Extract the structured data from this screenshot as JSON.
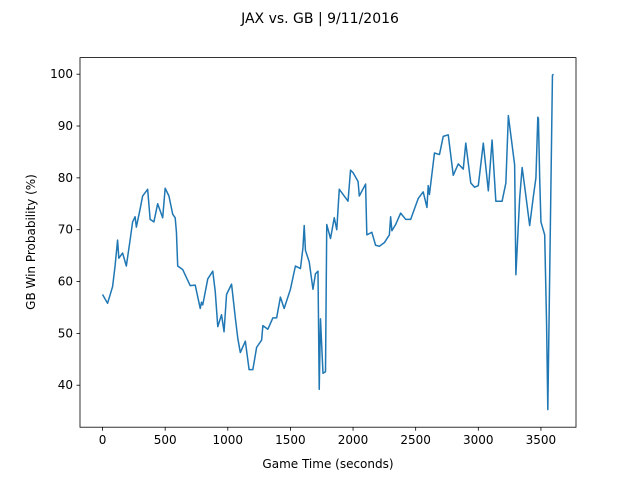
{
  "chart_data": {
    "type": "line",
    "title": "JAX vs. GB | 9/11/2016",
    "x_label": "Game Time (seconds)",
    "y_label": "GB Win Probability (%)",
    "xlim": [
      -180,
      3780
    ],
    "ylim": [
      31.9,
      103.2
    ],
    "xticks": [
      0,
      500,
      1000,
      1500,
      2000,
      2500,
      3000,
      3500
    ],
    "yticks": [
      40,
      50,
      60,
      70,
      80,
      90,
      100
    ],
    "series": [
      {
        "color": "#1f77b4",
        "x": [
          0,
          40,
          80,
          100,
          120,
          130,
          160,
          190,
          220,
          240,
          260,
          270,
          300,
          320,
          360,
          380,
          410,
          440,
          480,
          500,
          530,
          560,
          580,
          590,
          600,
          640,
          700,
          740,
          780,
          790,
          800,
          840,
          880,
          900,
          920,
          950,
          970,
          990,
          1030,
          1060,
          1080,
          1100,
          1140,
          1170,
          1200,
          1230,
          1270,
          1280,
          1320,
          1360,
          1390,
          1420,
          1450,
          1500,
          1540,
          1580,
          1600,
          1610,
          1620,
          1650,
          1680,
          1700,
          1720,
          1730,
          1740,
          1760,
          1780,
          1790,
          1820,
          1850,
          1870,
          1890,
          1960,
          1980,
          2000,
          2040,
          2050,
          2100,
          2110,
          2150,
          2180,
          2210,
          2250,
          2290,
          2300,
          2310,
          2340,
          2380,
          2420,
          2460,
          2490,
          2520,
          2560,
          2590,
          2600,
          2610,
          2650,
          2690,
          2720,
          2760,
          2800,
          2840,
          2880,
          2900,
          2940,
          2970,
          3000,
          3040,
          3080,
          3110,
          3140,
          3190,
          3220,
          3240,
          3290,
          3300,
          3330,
          3350,
          3380,
          3410,
          3440,
          3460,
          3475,
          3480,
          3490,
          3500,
          3530,
          3545,
          3555,
          3592,
          3600
        ],
        "values": [
          57.5,
          55.8,
          59,
          63,
          68,
          64.5,
          65.5,
          63,
          68,
          71.5,
          72.5,
          70.5,
          74,
          76.5,
          77.8,
          72,
          71.5,
          75,
          72.3,
          78,
          76.5,
          73,
          72.3,
          69.5,
          63,
          62.3,
          59.2,
          59.3,
          54.8,
          56,
          55.5,
          60.5,
          62,
          58,
          51.3,
          53.6,
          50.3,
          57.5,
          59.5,
          53,
          49,
          46.3,
          48.5,
          43,
          43,
          47.3,
          48.7,
          51.5,
          50.8,
          53,
          53,
          57,
          54.8,
          58.5,
          63,
          62.5,
          66.5,
          70.8,
          66,
          63.8,
          58.5,
          61.5,
          62,
          39.2,
          52.8,
          42.3,
          42.6,
          71,
          68.3,
          72.3,
          70,
          77.8,
          75.5,
          81.5,
          81,
          79.3,
          76.5,
          78.8,
          69,
          69.5,
          67,
          66.8,
          67.5,
          69,
          72.5,
          69.8,
          71,
          73.2,
          72,
          72,
          74,
          76,
          77.3,
          74.3,
          78.5,
          76.8,
          84.8,
          84.5,
          88,
          88.3,
          80.5,
          82.7,
          81.7,
          86.7,
          79,
          78.2,
          78.5,
          86.7,
          77.5,
          87.3,
          75.5,
          75.5,
          79,
          92,
          82.5,
          61.3,
          76,
          82,
          76.5,
          70.8,
          76.5,
          80,
          91.7,
          91.5,
          80,
          71.5,
          69,
          52,
          35.3,
          99.8,
          100
        ]
      }
    ]
  }
}
